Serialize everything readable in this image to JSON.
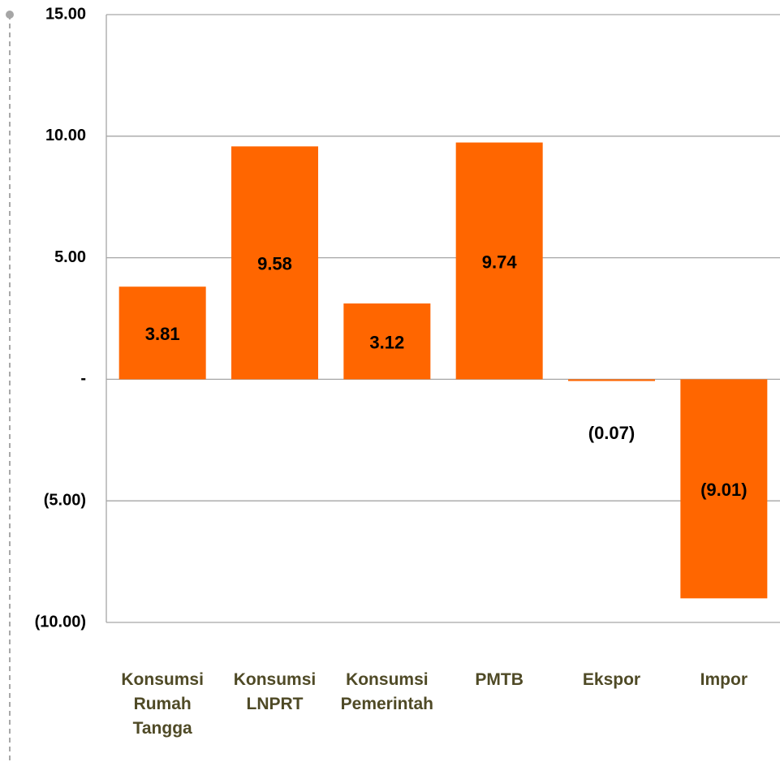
{
  "chart_data": {
    "type": "bar",
    "categories": [
      "Konsumsi Rumah Tangga",
      "Konsumsi LNPRT",
      "Konsumsi Pemerintah",
      "PMTB",
      "Ekspor",
      "Impor"
    ],
    "values": [
      3.81,
      9.58,
      3.12,
      9.74,
      -0.07,
      -9.01
    ],
    "value_labels": [
      "3.81",
      "9.58",
      "3.12",
      "9.74",
      "(0.07)",
      "(9.01)"
    ],
    "color": "#ff6600",
    "ylim": [
      -10,
      15
    ],
    "yticks": [
      {
        "value": -10,
        "label": "(10.00)"
      },
      {
        "value": -5,
        "label": "(5.00)"
      },
      {
        "value": 0,
        "label": "-"
      },
      {
        "value": 5,
        "label": "5.00"
      },
      {
        "value": 10,
        "label": "10.00"
      },
      {
        "value": 15,
        "label": "15.00"
      }
    ],
    "grid": true
  }
}
